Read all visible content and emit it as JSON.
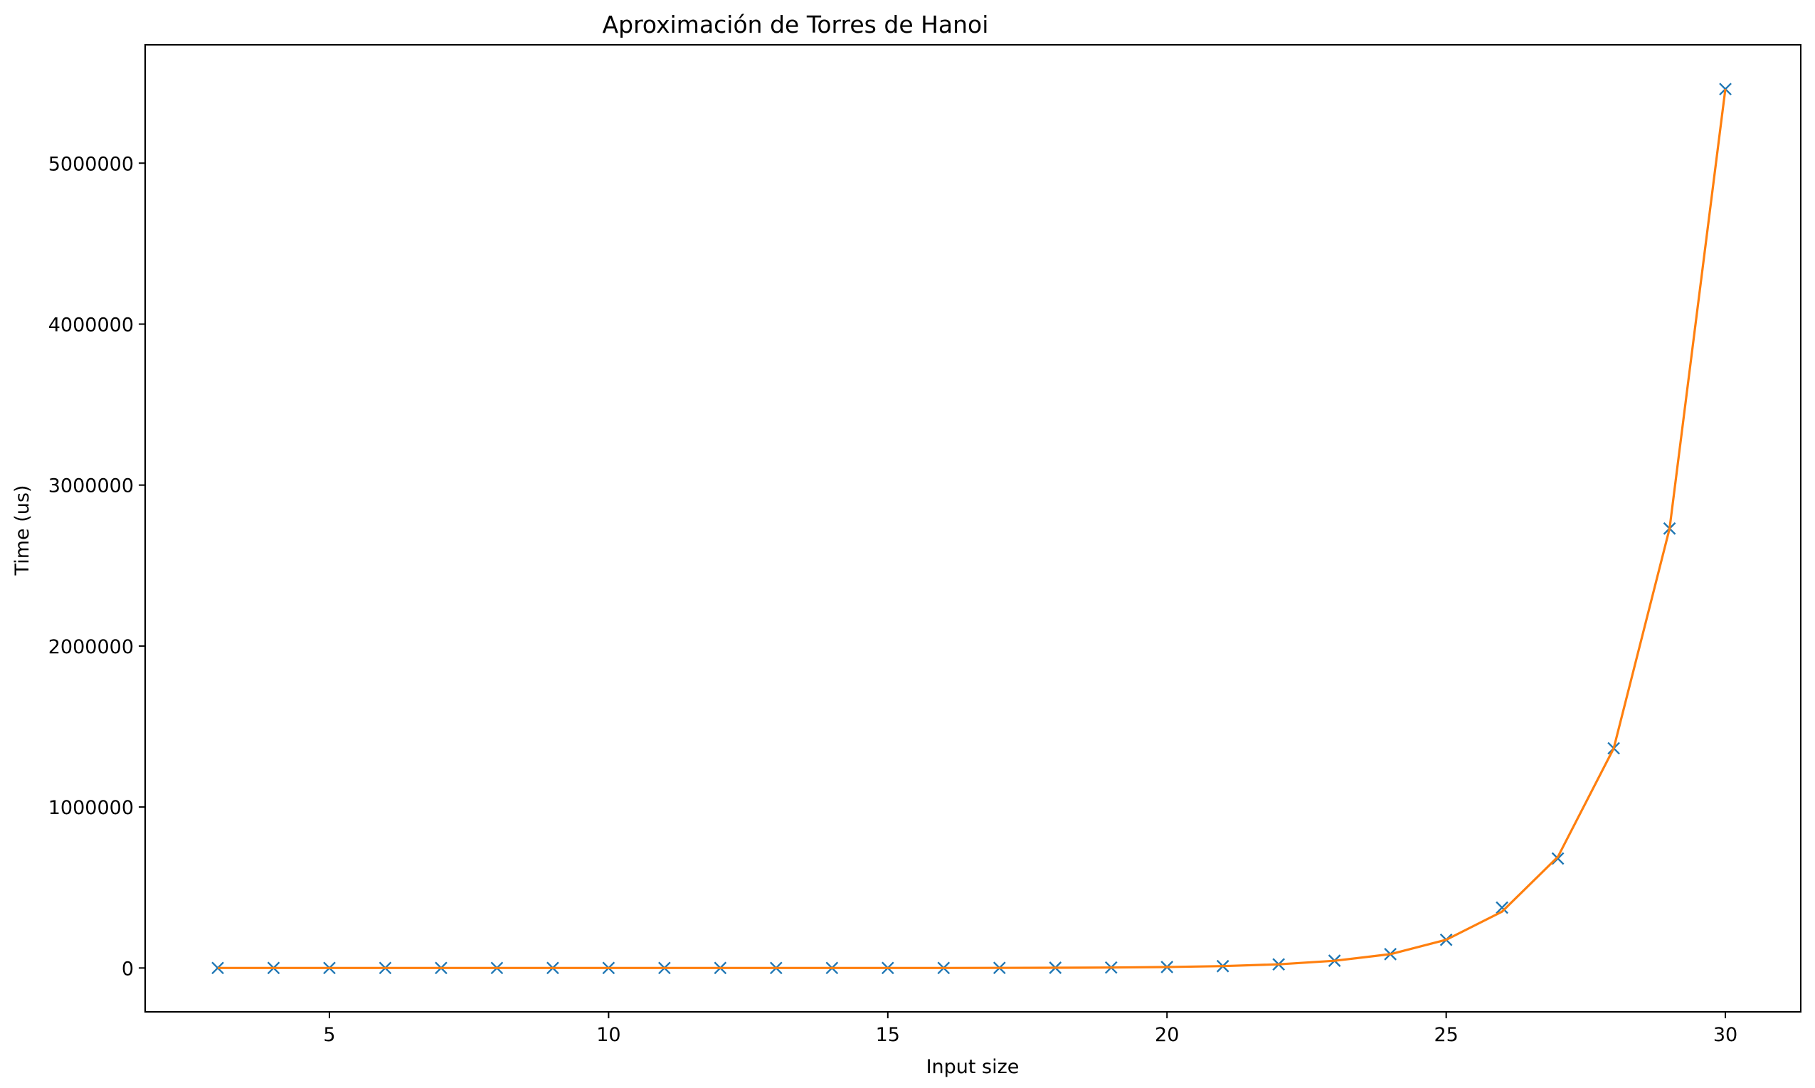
{
  "chart_data": {
    "type": "line",
    "title": "Aproximación de Torres de Hanoi",
    "xlabel": "Input size",
    "ylabel": "Time (us)",
    "xlim": [
      1.7,
      31.35
    ],
    "ylim": [
      -272600,
      5735000
    ],
    "xticks": [
      5,
      10,
      15,
      20,
      25,
      30
    ],
    "yticks": [
      0,
      1000000,
      2000000,
      3000000,
      4000000,
      5000000
    ],
    "x": [
      3,
      4,
      5,
      6,
      7,
      8,
      9,
      10,
      11,
      12,
      13,
      14,
      15,
      16,
      17,
      18,
      19,
      20,
      21,
      22,
      23,
      24,
      25,
      26,
      27,
      28,
      29,
      30
    ],
    "series": [
      {
        "marker": "x",
        "line": false,
        "color": "#1f77b4",
        "values": [
          0,
          0,
          0,
          0,
          0,
          0,
          0,
          0,
          0,
          0,
          0,
          0,
          0,
          0,
          700,
          1400,
          2800,
          6000,
          11500,
          22500,
          45000,
          86000,
          175000,
          375000,
          680000,
          1365000,
          2730000,
          5460000
        ]
      },
      {
        "marker": "none",
        "line": true,
        "color": "#ff7f0e",
        "values": [
          0,
          0,
          0,
          0,
          0,
          0,
          0,
          0,
          0,
          0,
          0,
          0,
          0,
          0,
          700,
          1400,
          2800,
          6000,
          11500,
          22500,
          45000,
          86000,
          175000,
          350000,
          690000,
          1365000,
          2730000,
          5460000
        ]
      }
    ],
    "grid": false,
    "legend": "none"
  }
}
